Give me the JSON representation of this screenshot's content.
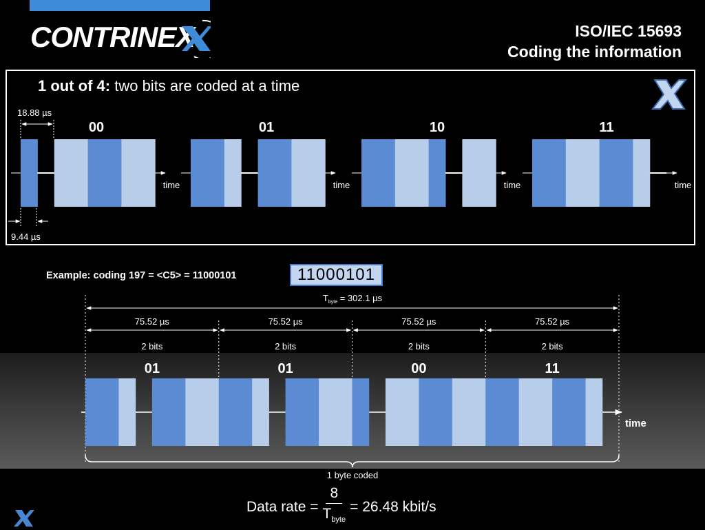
{
  "logo": {
    "text": "CONTRINEX",
    "icon": "contrinex-x-icon"
  },
  "slide_title": {
    "line1": "ISO/IEC 15693",
    "line2": "Coding the information"
  },
  "panel": {
    "heading_bold": "1 out of 4:",
    "heading_rest": " two bits are coded at a time",
    "pulse_width_label": "18.88 µs",
    "pause_width_label": "9.44 µs",
    "codes": [
      "00",
      "01",
      "10",
      "11"
    ],
    "time_label": "time"
  },
  "example": {
    "label": "Example: coding 197 = <C5> = 11000101",
    "bits": "11000101",
    "tbyte_prefix": "T",
    "tbyte_sub": "byte",
    "tbyte_value": " = 302.1 µs",
    "segment_duration": "75.52 µs",
    "segment_bits": "2 bits",
    "codes": [
      "01",
      "01",
      "00",
      "11"
    ],
    "time_label": "time",
    "byte_label": "1 byte coded"
  },
  "data_rate": {
    "prefix": "Data rate =",
    "numerator": "8",
    "denominator": "T",
    "denominator_sub": "byte",
    "result": "= 26.48 kbit/s"
  },
  "colors": {
    "dark_blue": "#5b8cd3",
    "light_blue": "#b8cdea",
    "accent": "#3d8bd9"
  }
}
